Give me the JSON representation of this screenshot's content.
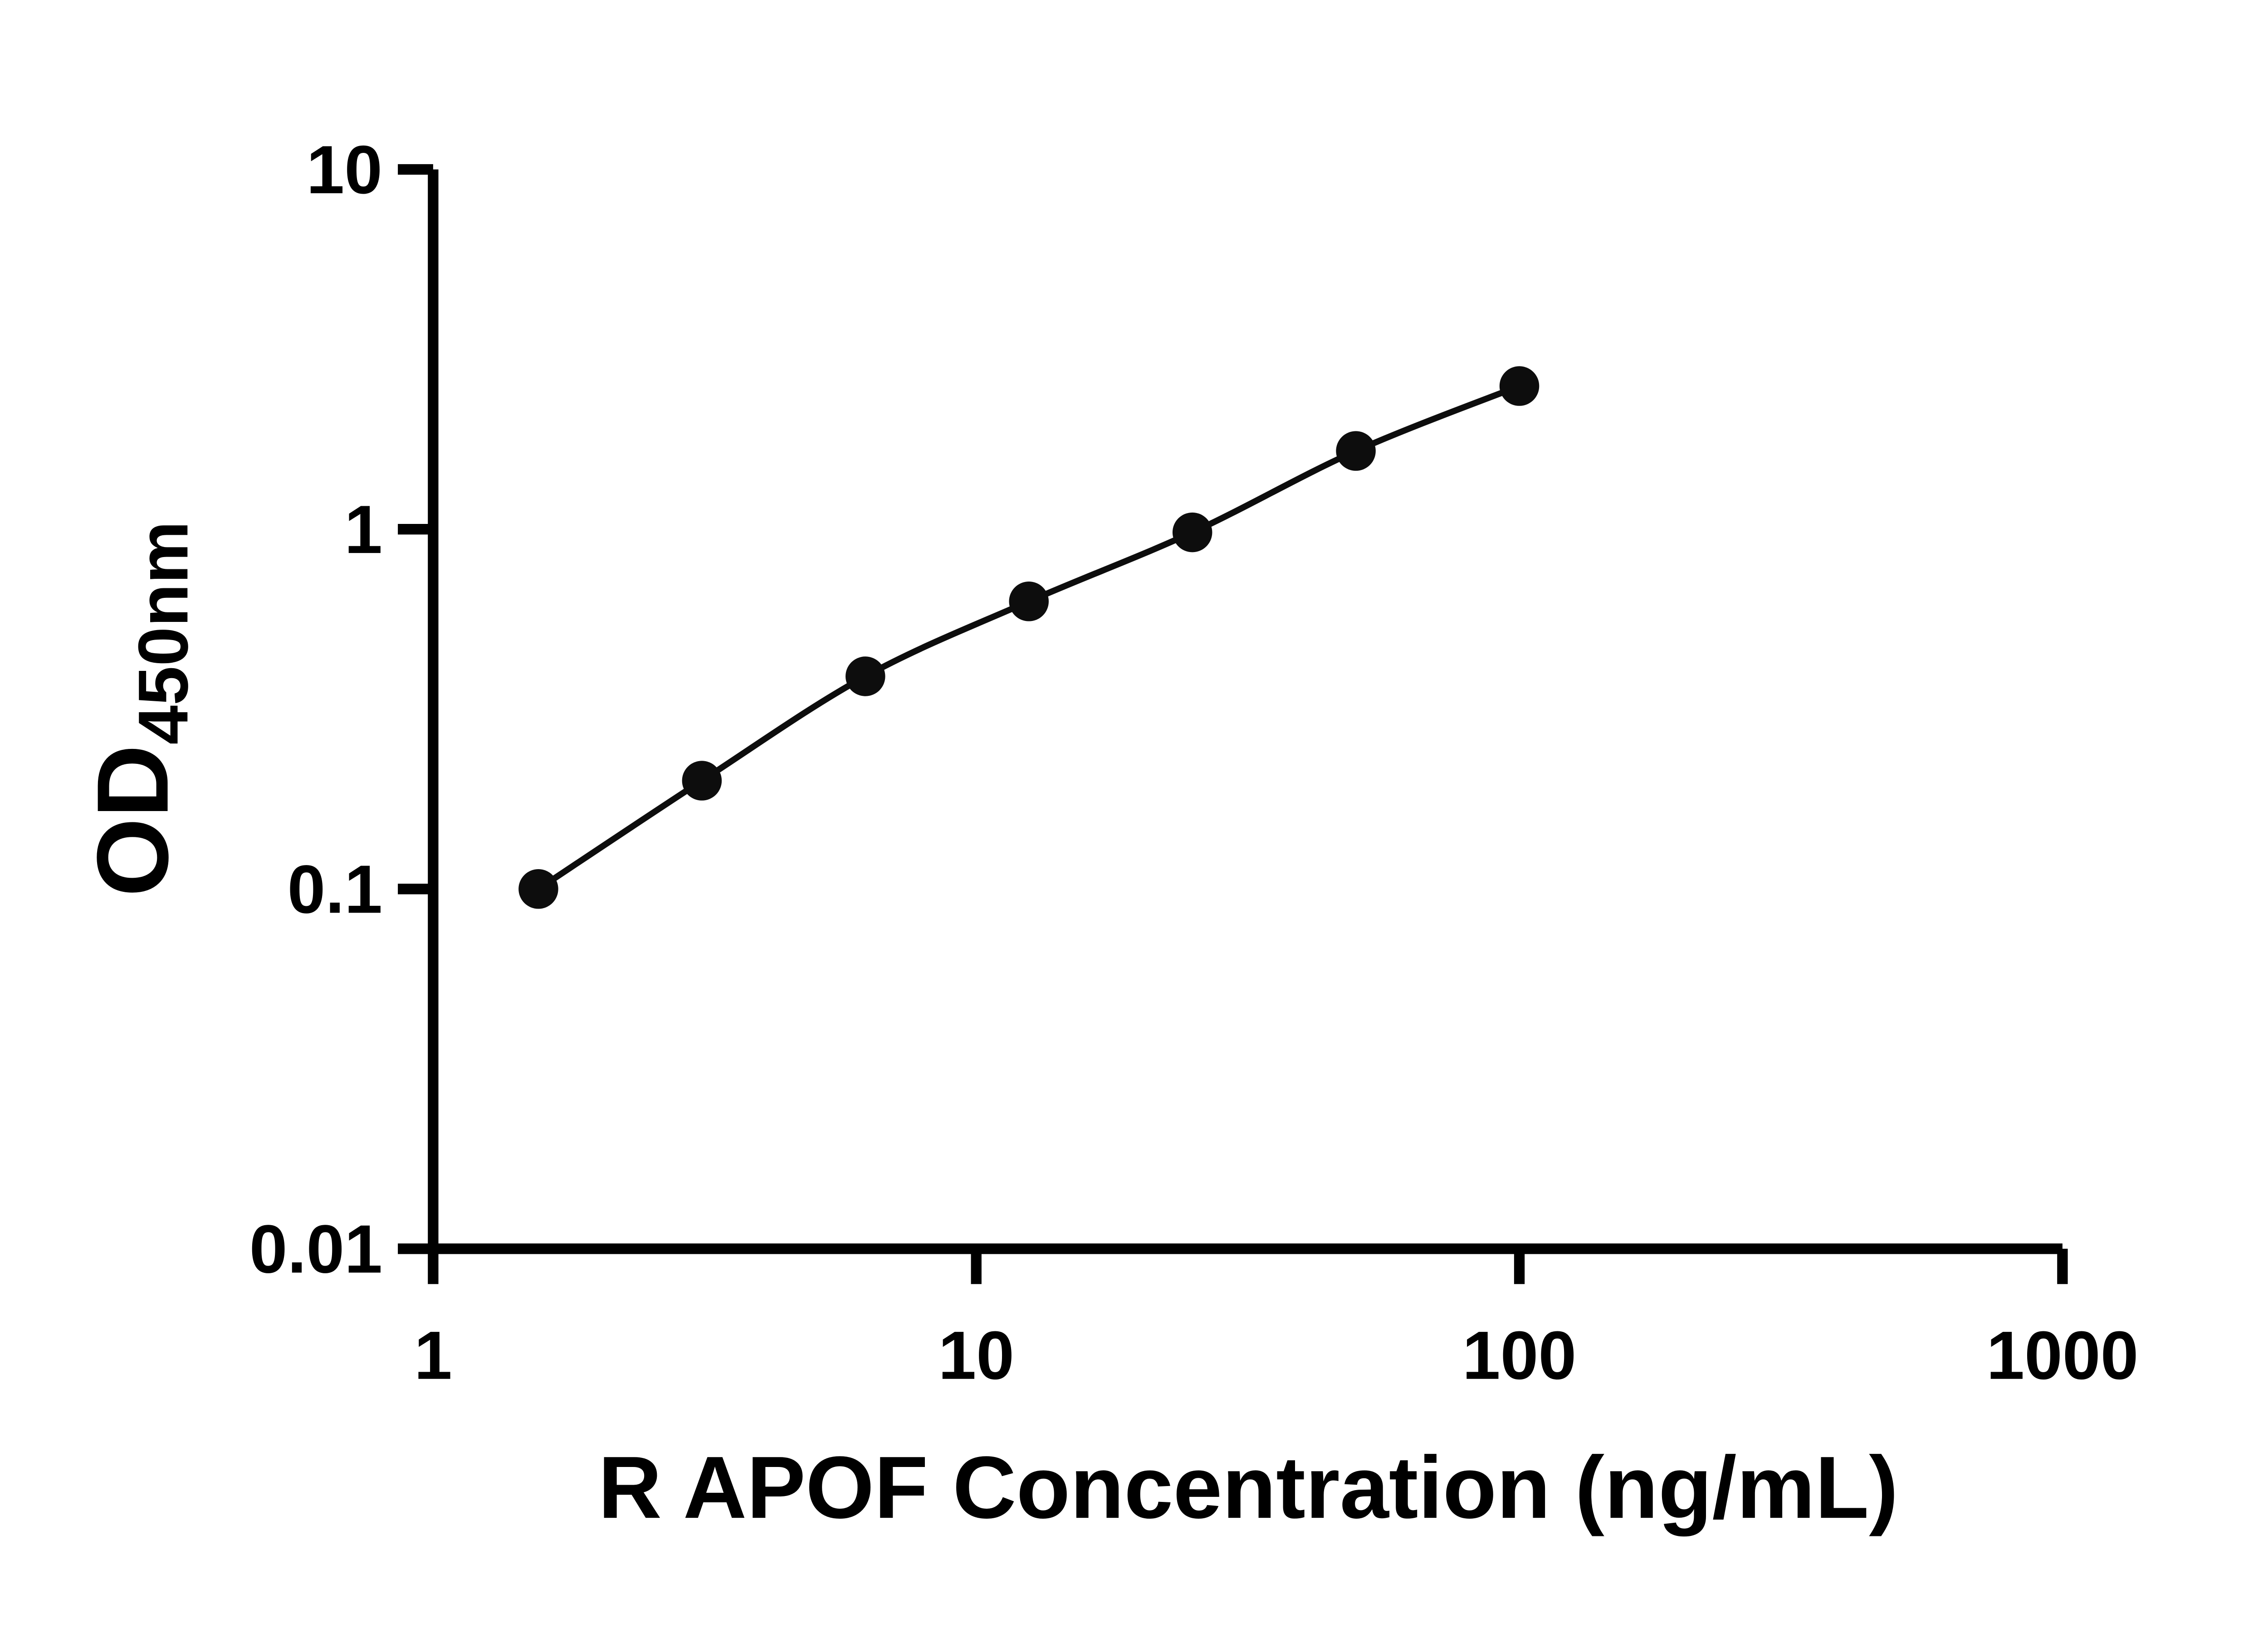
{
  "chart_data": {
    "type": "scatter",
    "title": "",
    "xlabel": "R APOF Concentration (ng/mL)",
    "ylabel_main": "OD",
    "ylabel_sub": "450nm",
    "xscale": "log",
    "yscale": "log",
    "xlim": [
      1,
      1000
    ],
    "ylim": [
      0.01,
      10
    ],
    "x_ticks": [
      1,
      10,
      100,
      1000
    ],
    "x_tick_labels": [
      "1",
      "10",
      "100",
      "1000"
    ],
    "y_ticks": [
      0.01,
      0.1,
      1,
      10
    ],
    "y_tick_labels": [
      "0.01",
      "0.1",
      "1",
      "10"
    ],
    "x": [
      1.5625,
      3.125,
      6.25,
      12.5,
      25,
      50,
      100
    ],
    "y": [
      0.1,
      0.2,
      0.39,
      0.63,
      0.98,
      1.65,
      2.5
    ],
    "grid": false,
    "legend": "none",
    "marker_shape": "circle",
    "marker_color": "#0d0d0d",
    "line_color": "#0d0d0d",
    "axis_color": "#000000"
  }
}
